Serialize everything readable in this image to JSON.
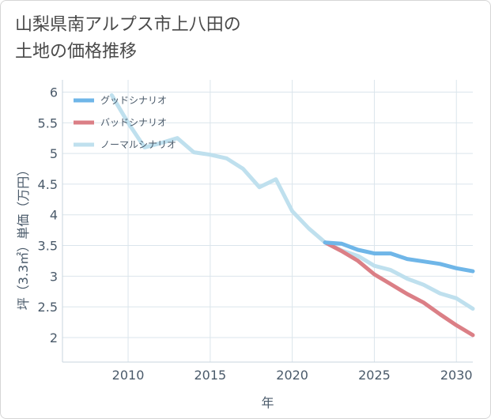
{
  "title": "山梨県南アルプス市上八田の\n土地の価格推移",
  "chart_data": {
    "type": "line",
    "xlabel": "年",
    "ylabel": "坪（3.3㎡）単価（万円）",
    "xlim": [
      2006,
      2031
    ],
    "ylim": [
      1.6,
      6.2
    ],
    "xticks": [
      2010,
      2015,
      2020,
      2025,
      2030
    ],
    "yticks": [
      2,
      2.5,
      3,
      3.5,
      4,
      4.5,
      5,
      5.5,
      6
    ],
    "xtick_labels": [
      "2010",
      "2015",
      "2020",
      "2025",
      "2030"
    ],
    "ytick_labels": [
      "2",
      "2.5",
      "3",
      "3.5",
      "4",
      "4.5",
      "5",
      "5.5",
      "6"
    ],
    "legend_position": "top-left",
    "series": [
      {
        "name": "グッドシナリオ",
        "color": "#6fb6e8",
        "x": [
          2022,
          2023,
          2024,
          2025,
          2026,
          2027,
          2028,
          2029,
          2030,
          2031
        ],
        "y": [
          3.55,
          3.53,
          3.43,
          3.37,
          3.37,
          3.28,
          3.24,
          3.2,
          3.13,
          3.08
        ]
      },
      {
        "name": "バッドシナリオ",
        "color": "#db7f86",
        "x": [
          2022,
          2023,
          2024,
          2025,
          2026,
          2027,
          2028,
          2029,
          2030,
          2031
        ],
        "y": [
          3.55,
          3.41,
          3.25,
          3.03,
          2.87,
          2.71,
          2.57,
          2.38,
          2.2,
          2.04
        ]
      },
      {
        "name": "ノーマルシナリオ",
        "color": "#bfe0ee",
        "x": [
          2009,
          2010,
          2011,
          2012,
          2013,
          2014,
          2015,
          2016,
          2017,
          2018,
          2019,
          2020,
          2021,
          2022,
          2023,
          2024,
          2025,
          2026,
          2027,
          2028,
          2029,
          2030,
          2031
        ],
        "y": [
          5.95,
          5.5,
          5.1,
          5.17,
          5.25,
          5.02,
          4.98,
          4.92,
          4.75,
          4.45,
          4.58,
          4.06,
          3.78,
          3.55,
          3.42,
          3.33,
          3.17,
          3.1,
          2.96,
          2.86,
          2.72,
          2.64,
          2.47
        ]
      }
    ]
  }
}
